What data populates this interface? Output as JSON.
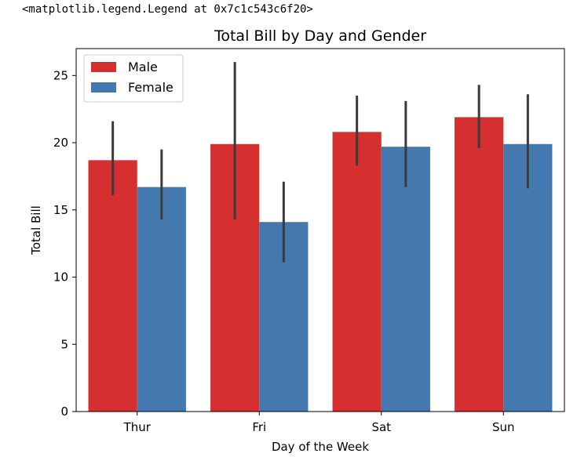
{
  "output_repr": "<matplotlib.legend.Legend at 0x7c1c543c6f20>",
  "chart_data": {
    "type": "bar",
    "title": "Total Bill by Day and Gender",
    "xlabel": "Day of the Week",
    "ylabel": "Total Bill",
    "categories": [
      "Thur",
      "Fri",
      "Sat",
      "Sun"
    ],
    "ylim": [
      0,
      27
    ],
    "yticks": [
      0,
      5,
      10,
      15,
      20,
      25
    ],
    "grid": false,
    "legend_position": "top-left",
    "series": [
      {
        "name": "Male",
        "color": "#d62f2f",
        "values": [
          18.7,
          19.9,
          20.8,
          21.9
        ],
        "error_low": [
          16.1,
          14.3,
          18.3,
          19.6
        ],
        "error_high": [
          21.6,
          26.0,
          23.5,
          24.3
        ]
      },
      {
        "name": "Female",
        "color": "#4479b0",
        "values": [
          16.7,
          14.1,
          19.7,
          19.9
        ],
        "error_low": [
          14.3,
          11.1,
          16.7,
          16.6
        ],
        "error_high": [
          19.5,
          17.1,
          23.1,
          23.6
        ]
      }
    ],
    "error_bar_color": "#3b3b3b"
  }
}
